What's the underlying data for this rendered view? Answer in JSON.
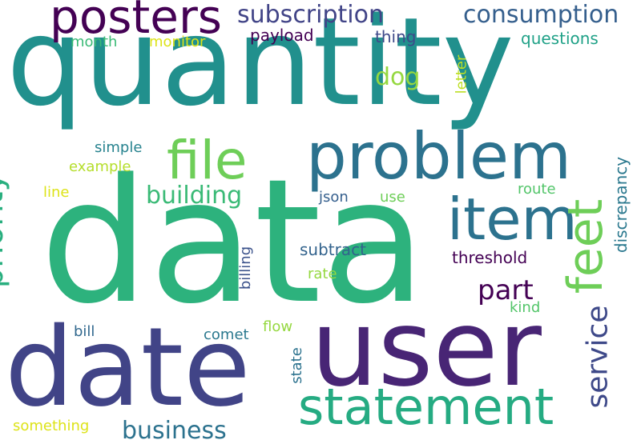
{
  "words": [
    {
      "text": "quantity",
      "color": "#21908d"
    },
    {
      "text": "data",
      "color": "#2db27d"
    },
    {
      "text": "user",
      "color": "#482575"
    },
    {
      "text": "date",
      "color": "#414487"
    },
    {
      "text": "problem",
      "color": "#2c728e"
    },
    {
      "text": "statement",
      "color": "#25ab82"
    },
    {
      "text": "posters",
      "color": "#440154"
    },
    {
      "text": "item",
      "color": "#2c728e"
    },
    {
      "text": "file",
      "color": "#6ece58"
    },
    {
      "text": "feet",
      "color": "#6ece58"
    },
    {
      "text": "priority",
      "color": "#29af7f"
    },
    {
      "text": "service",
      "color": "#3e4989"
    },
    {
      "text": "subscription",
      "color": "#414487"
    },
    {
      "text": "consumption",
      "color": "#355f8d"
    },
    {
      "text": "business",
      "color": "#2c728e"
    },
    {
      "text": "building",
      "color": "#3aba76"
    },
    {
      "text": "part",
      "color": "#440154"
    },
    {
      "text": "dog",
      "color": "#95d840"
    },
    {
      "text": "discrepancy",
      "color": "#2a788e"
    },
    {
      "text": "payload",
      "color": "#440154"
    },
    {
      "text": "questions",
      "color": "#1fa187"
    },
    {
      "text": "month",
      "color": "#3aba76"
    },
    {
      "text": "monitor",
      "color": "#dde318"
    },
    {
      "text": "thing",
      "color": "#3e4989"
    },
    {
      "text": "letter",
      "color": "#bddf26"
    },
    {
      "text": "simple",
      "color": "#26828e"
    },
    {
      "text": "example",
      "color": "#b5de2b"
    },
    {
      "text": "line",
      "color": "#dde318"
    },
    {
      "text": "json",
      "color": "#355f8d"
    },
    {
      "text": "use",
      "color": "#6ece58"
    },
    {
      "text": "route",
      "color": "#52c569"
    },
    {
      "text": "subtract",
      "color": "#33638d"
    },
    {
      "text": "threshold",
      "color": "#440154"
    },
    {
      "text": "rate",
      "color": "#95d840"
    },
    {
      "text": "billing",
      "color": "#3b528b"
    },
    {
      "text": "kind",
      "color": "#52c569"
    },
    {
      "text": "flow",
      "color": "#95d840"
    },
    {
      "text": "bill",
      "color": "#31688e"
    },
    {
      "text": "comet",
      "color": "#2a788e"
    },
    {
      "text": "state",
      "color": "#2c728e"
    },
    {
      "text": "something",
      "color": "#dde318"
    }
  ]
}
